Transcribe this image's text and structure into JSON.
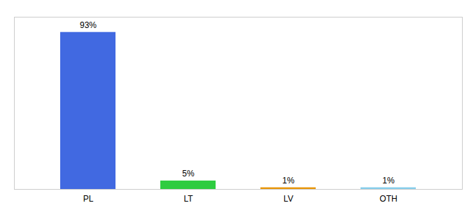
{
  "chart_data": {
    "type": "bar",
    "categories": [
      "PL",
      "LT",
      "LV",
      "OTH"
    ],
    "values": [
      93,
      5,
      1,
      1
    ],
    "value_labels": [
      "93%",
      "5%",
      "1%",
      "1%"
    ],
    "colors": [
      "#4169e1",
      "#2ecc40",
      "#e8960a",
      "#87ceeb"
    ],
    "ylim": [
      0,
      102
    ],
    "data_labels": true,
    "tick_labels": "x",
    "grid": false
  }
}
